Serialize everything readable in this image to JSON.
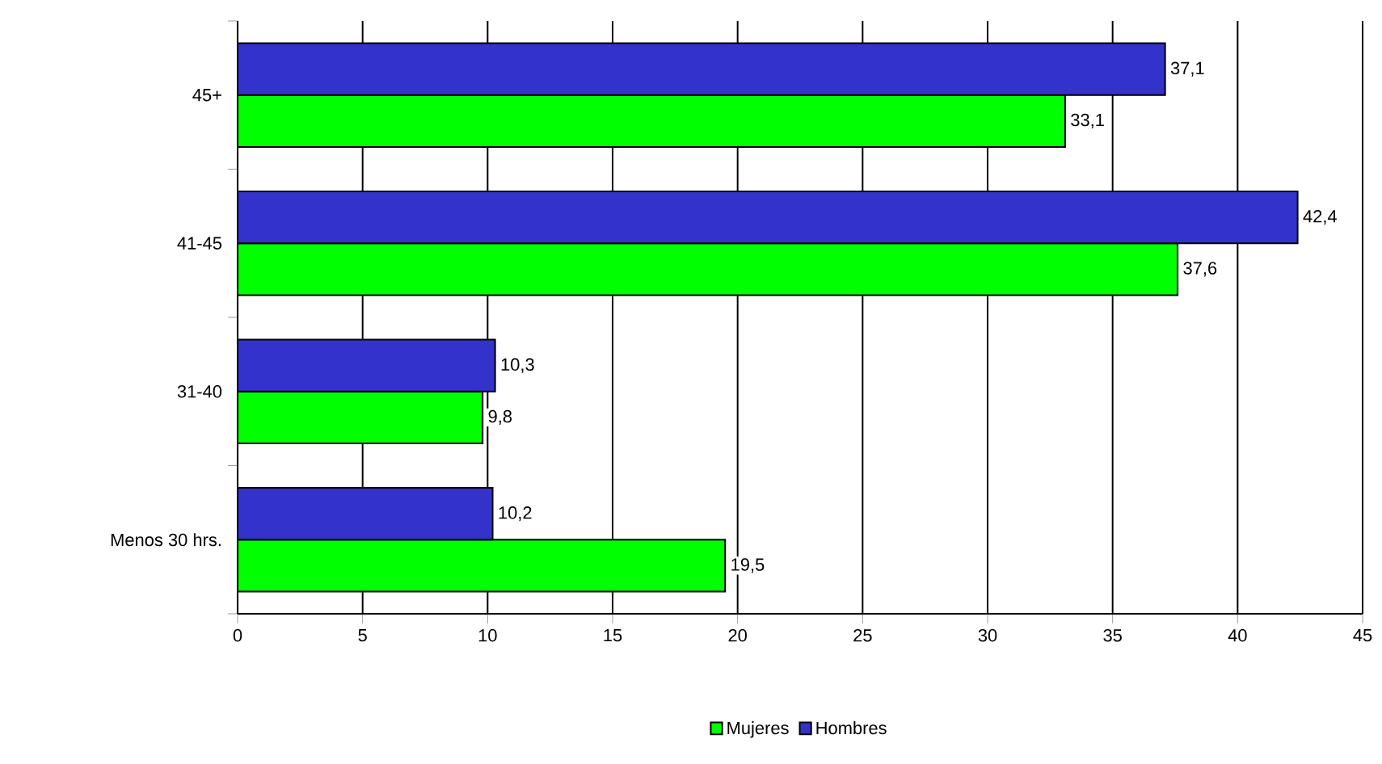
{
  "chart_data": {
    "type": "bar",
    "orientation": "horizontal",
    "categories": [
      "45+",
      "41-45",
      "31-40",
      "Menos 30 hrs."
    ],
    "series": [
      {
        "name": "Mujeres",
        "color": "#00ff00",
        "values": [
          33.1,
          37.6,
          9.8,
          19.5
        ],
        "value_labels": [
          "33,1",
          "37,6",
          "9,8",
          "19,5"
        ]
      },
      {
        "name": "Hombres",
        "color": "#3333cc",
        "values": [
          37.1,
          42.4,
          10.3,
          10.2
        ],
        "value_labels": [
          "37,1",
          "42,4",
          "10,3",
          "10,2"
        ]
      }
    ],
    "xlim": [
      0,
      45
    ],
    "xticks": [
      0,
      5,
      10,
      15,
      20,
      25,
      30,
      35,
      40,
      45
    ],
    "grid": "x",
    "legend": "bottom"
  }
}
